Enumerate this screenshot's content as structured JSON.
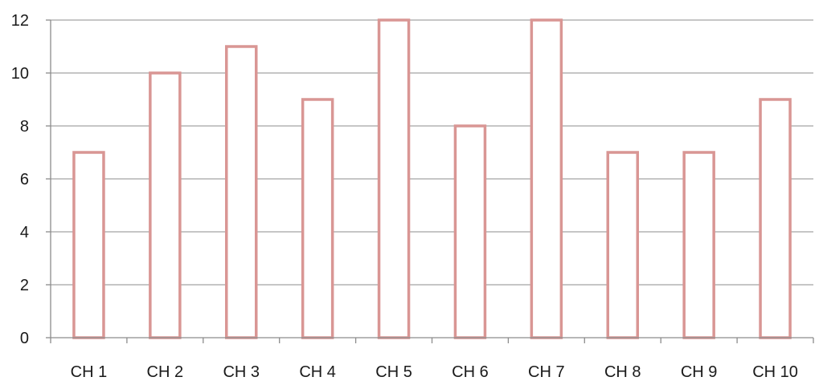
{
  "chart_data": {
    "type": "bar",
    "categories": [
      "CH 1",
      "CH 2",
      "CH 3",
      "CH 4",
      "CH 5",
      "CH 6",
      "CH 7",
      "CH 8",
      "CH 9",
      "CH 10"
    ],
    "values": [
      7,
      10,
      11,
      9,
      12,
      8,
      12,
      7,
      7,
      9
    ],
    "title": "",
    "xlabel": "",
    "ylabel": "",
    "ylim": [
      0,
      12
    ],
    "yticks": [
      0,
      2,
      4,
      6,
      8,
      10,
      12
    ],
    "grid": true,
    "legend": "none",
    "colors": {
      "bar_outline": "#d99694",
      "bar_fill": "#ffffff",
      "grid": "#8c8c8c"
    }
  }
}
